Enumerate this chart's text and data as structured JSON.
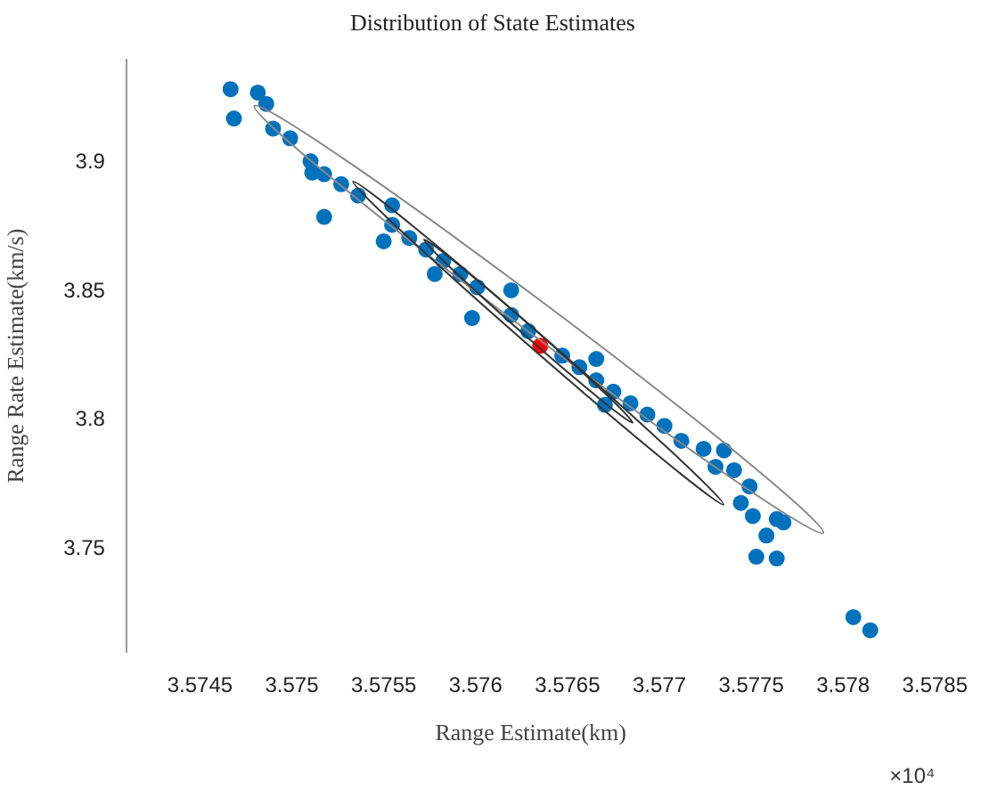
{
  "chart_data": {
    "type": "scatter",
    "title": "Distribution of State Estimates",
    "xlabel": "Range Estimate(km)",
    "ylabel": "Range Rate Estimate(km/s)",
    "annotations": [
      "×10⁴"
    ],
    "xlim": [
      3.5741,
      3.5785
    ],
    "xticks": [
      3.5745,
      3.575,
      3.5755,
      3.576,
      3.5765,
      3.577,
      3.5775,
      3.578,
      3.5785
    ],
    "ylim": [
      3.71,
      3.94
    ],
    "yticks": [
      3.75,
      3.8,
      3.85,
      3.9
    ],
    "grid": false,
    "legend": false,
    "marker": "circle",
    "series": [
      {
        "type": "scatter",
        "color": "#0072bd",
        "x": [
          3.574667,
          3.574685,
          3.574815,
          3.574861,
          3.574898,
          3.574991,
          3.575102,
          3.575176,
          3.575111,
          3.575269,
          3.575361,
          3.575546,
          3.575639,
          3.575731,
          3.575824,
          3.575917,
          3.576009,
          3.575981,
          3.576194,
          3.576287,
          3.576472,
          3.576565,
          3.576657,
          3.57675,
          3.576843,
          3.576935,
          3.577028,
          3.57712,
          3.577306,
          3.577241,
          3.577352,
          3.577407,
          3.577491,
          3.577444,
          3.577509,
          3.577583,
          3.577639,
          3.577676,
          3.577528,
          3.577639,
          3.578056,
          3.578148,
          3.575778,
          3.576194,
          3.576657,
          3.576704,
          3.575546,
          3.575176,
          3.5755
        ],
        "values": [
          3.9286,
          3.9172,
          3.9273,
          3.9229,
          3.9133,
          3.9095,
          3.9006,
          3.8956,
          3.8962,
          3.8917,
          3.8873,
          3.8759,
          3.8708,
          3.8663,
          3.8619,
          3.8568,
          3.8517,
          3.8397,
          3.8409,
          3.8346,
          3.8251,
          3.8206,
          3.8155,
          3.8111,
          3.8066,
          3.8022,
          3.7978,
          3.792,
          3.7819,
          3.7889,
          3.7883,
          3.7806,
          3.7743,
          3.7679,
          3.7628,
          3.7552,
          3.7616,
          3.7603,
          3.747,
          3.7463,
          3.7235,
          3.7184,
          3.8568,
          3.8505,
          3.8238,
          3.806,
          3.8835,
          3.879,
          3.8695
        ]
      },
      {
        "type": "scatter",
        "color": "#ff0000",
        "x": [
          3.576352
        ],
        "values": [
          3.8289
        ]
      }
    ]
  }
}
